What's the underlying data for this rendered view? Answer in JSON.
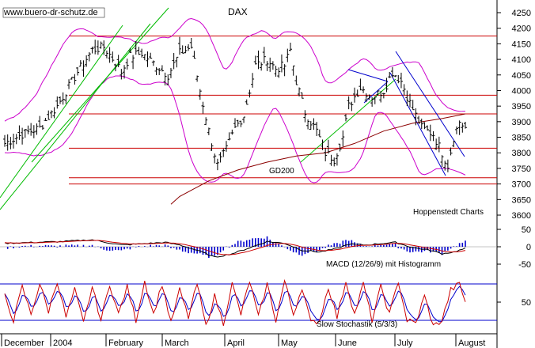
{
  "watermark": "www.buero-dr-schutz.de",
  "colors": {
    "background": "#ffffff",
    "price_bar": "#000000",
    "bollinger": "#cc00cc",
    "horizontal_lines": "#cc0000",
    "gd200": "#8b0000",
    "trend_green": "#00bb00",
    "trend_blue": "#0000cc",
    "histogram": "#0000cc",
    "macd": "#000000",
    "signal": "#cc0000",
    "stoch_k": "#cc0000",
    "stoch_d": "#0000cc",
    "stoch_bounds": "#0000cc",
    "grid": "#000000"
  },
  "chart_data": [
    {
      "type": "line",
      "subtype": "ohlc-bars",
      "title": "DAX",
      "y_ticks": [
        3600,
        3650,
        3700,
        3750,
        3800,
        3850,
        3900,
        3950,
        4000,
        4050,
        4100,
        4150,
        4200,
        4250
      ],
      "ylim": [
        3575,
        4275
      ],
      "x_tick_labels": [
        "December",
        "2004",
        "February",
        "March",
        "April",
        "May",
        "June",
        "July",
        "August"
      ],
      "horizontal_levels": [
        4175,
        3985,
        3925,
        3815,
        3720,
        3700
      ],
      "annotations": [
        "GD200",
        "Hoppenstedt Charts"
      ],
      "price_anchors": [
        [
          0,
          3830
        ],
        [
          6,
          3860
        ],
        [
          12,
          3880
        ],
        [
          18,
          3950
        ],
        [
          25,
          4060
        ],
        [
          30,
          4130
        ],
        [
          34,
          4140
        ],
        [
          38,
          4090
        ],
        [
          40,
          4060
        ],
        [
          43,
          4110
        ],
        [
          47,
          4120
        ],
        [
          52,
          4080
        ],
        [
          56,
          4050
        ],
        [
          60,
          4120
        ],
        [
          64,
          4140
        ],
        [
          67,
          4000
        ],
        [
          70,
          3870
        ],
        [
          73,
          3760
        ],
        [
          76,
          3810
        ],
        [
          79,
          3880
        ],
        [
          82,
          3920
        ],
        [
          86,
          4080
        ],
        [
          90,
          4100
        ],
        [
          93,
          4070
        ],
        [
          96,
          4080
        ],
        [
          98,
          4130
        ],
        [
          100,
          4030
        ],
        [
          103,
          3930
        ],
        [
          107,
          3870
        ],
        [
          110,
          3800
        ],
        [
          113,
          3780
        ],
        [
          116,
          3850
        ],
        [
          118,
          3950
        ],
        [
          122,
          4010
        ],
        [
          126,
          3980
        ],
        [
          130,
          4000
        ],
        [
          133,
          4060
        ],
        [
          136,
          4030
        ],
        [
          139,
          3960
        ],
        [
          143,
          3880
        ],
        [
          147,
          3860
        ],
        [
          150,
          3800
        ],
        [
          152,
          3760
        ],
        [
          154,
          3850
        ],
        [
          156,
          3900
        ],
        [
          158,
          3880
        ]
      ],
      "series": [
        {
          "name": "GD200",
          "values": [
            [
              57,
              3635
            ],
            [
              60,
              3660
            ],
            [
              70,
              3710
            ],
            [
              80,
              3745
            ],
            [
              90,
              3770
            ],
            [
              100,
              3790
            ],
            [
              110,
              3800
            ],
            [
              120,
              3830
            ],
            [
              130,
              3870
            ],
            [
              140,
              3895
            ],
            [
              150,
              3910
            ],
            [
              158,
              3925
            ]
          ]
        }
      ]
    },
    {
      "type": "bar",
      "subtype": "macd-histogram",
      "label": "MACD (12/26/9) mit Histogramm",
      "y_ticks": [
        50,
        0,
        -50
      ],
      "ylim": [
        -80,
        80
      ],
      "macd_anchors": [
        [
          0,
          20
        ],
        [
          10,
          25
        ],
        [
          20,
          30
        ],
        [
          30,
          40
        ],
        [
          40,
          10
        ],
        [
          50,
          20
        ],
        [
          55,
          25
        ],
        [
          60,
          10
        ],
        [
          66,
          -20
        ],
        [
          72,
          -60
        ],
        [
          78,
          -40
        ],
        [
          85,
          0
        ],
        [
          90,
          30
        ],
        [
          96,
          20
        ],
        [
          102,
          -20
        ],
        [
          108,
          -30
        ],
        [
          114,
          -10
        ],
        [
          118,
          15
        ],
        [
          124,
          10
        ],
        [
          130,
          20
        ],
        [
          134,
          25
        ],
        [
          140,
          -5
        ],
        [
          146,
          -20
        ],
        [
          150,
          -40
        ],
        [
          154,
          -30
        ],
        [
          158,
          -10
        ]
      ]
    },
    {
      "type": "line",
      "subtype": "stochastic",
      "label": "Slow Stochastik (5/3/3)",
      "y_ticks": [
        50
      ],
      "ylim": [
        0,
        100
      ],
      "bounds": [
        80,
        20
      ],
      "stoch_anchors": [
        [
          0,
          60
        ],
        [
          3,
          20
        ],
        [
          6,
          75
        ],
        [
          9,
          30
        ],
        [
          12,
          80
        ],
        [
          15,
          35
        ],
        [
          18,
          85
        ],
        [
          21,
          25
        ],
        [
          24,
          70
        ],
        [
          27,
          15
        ],
        [
          30,
          75
        ],
        [
          33,
          20
        ],
        [
          36,
          80
        ],
        [
          39,
          30
        ],
        [
          42,
          75
        ],
        [
          45,
          20
        ],
        [
          48,
          85
        ],
        [
          51,
          30
        ],
        [
          54,
          80
        ],
        [
          57,
          15
        ],
        [
          60,
          70
        ],
        [
          63,
          25
        ],
        [
          66,
          80
        ],
        [
          69,
          10
        ],
        [
          72,
          60
        ],
        [
          75,
          15
        ],
        [
          78,
          80
        ],
        [
          81,
          30
        ],
        [
          84,
          85
        ],
        [
          87,
          25
        ],
        [
          90,
          80
        ],
        [
          93,
          20
        ],
        [
          96,
          85
        ],
        [
          99,
          30
        ],
        [
          102,
          75
        ],
        [
          105,
          15
        ],
        [
          108,
          20
        ],
        [
          111,
          75
        ],
        [
          114,
          25
        ],
        [
          117,
          85
        ],
        [
          120,
          30
        ],
        [
          123,
          80
        ],
        [
          126,
          20
        ],
        [
          129,
          75
        ],
        [
          132,
          30
        ],
        [
          135,
          85
        ],
        [
          138,
          20
        ],
        [
          141,
          15
        ],
        [
          144,
          60
        ],
        [
          147,
          10
        ],
        [
          150,
          20
        ],
        [
          153,
          70
        ],
        [
          156,
          80
        ],
        [
          158,
          50
        ]
      ]
    }
  ]
}
